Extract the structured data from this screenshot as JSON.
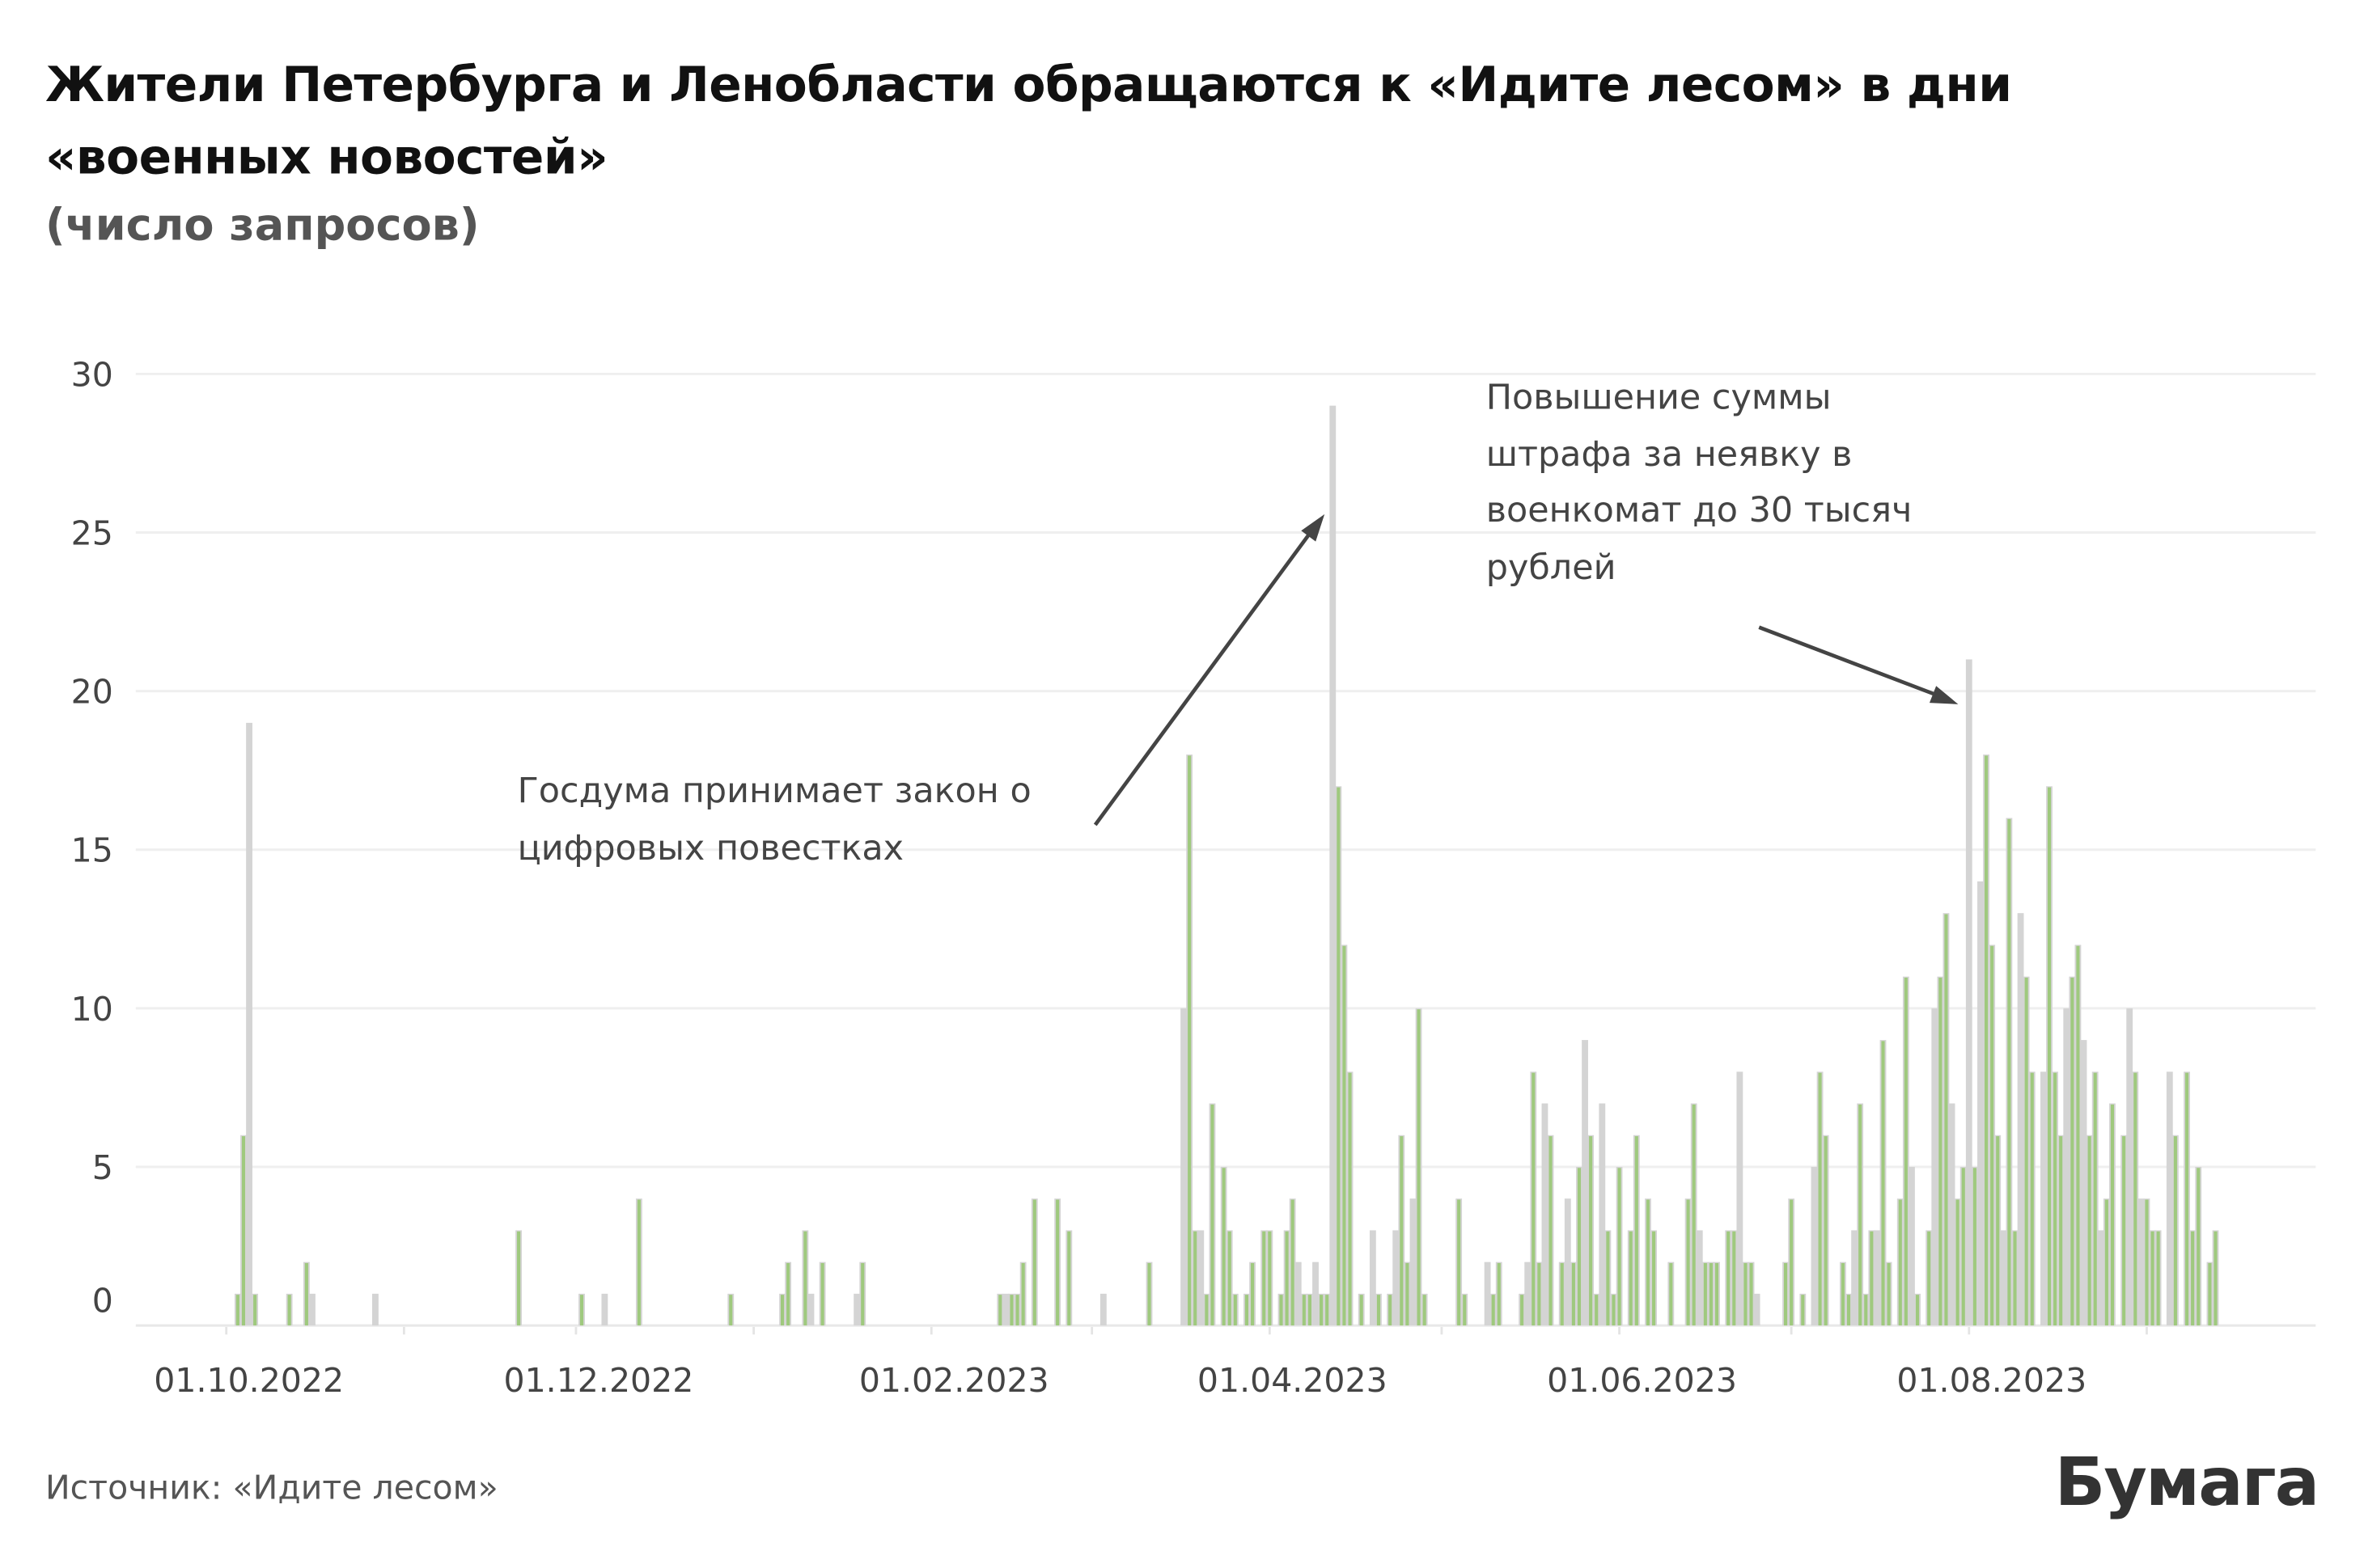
{
  "chart_data": {
    "type": "bar",
    "title": "Жители Петербурга и Ленобласти обращаются к «Идите лесом» в дни «военных новостей»",
    "subtitle": "(число запросов)",
    "xlabel": "",
    "ylabel": "",
    "ylim": [
      0,
      30
    ],
    "xlim": [
      "2022-09-28",
      "2023-09-20"
    ],
    "grid": true,
    "y_ticks": [
      "0",
      "5",
      "10",
      "15",
      "20",
      "25",
      "30"
    ],
    "x_ticks": [
      {
        "date": "2022-10-01",
        "label": "01.10.2022"
      },
      {
        "date": "2022-12-01",
        "label": "01.12.2022"
      },
      {
        "date": "2023-02-01",
        "label": "01.02.2023"
      },
      {
        "date": "2023-04-01",
        "label": "01.04.2023"
      },
      {
        "date": "2023-06-01",
        "label": "01.06.2023"
      },
      {
        "date": "2023-08-01",
        "label": "01.08.2023"
      }
    ],
    "colors": {
      "green": "#9fc97e",
      "gray": "#d4d4d4",
      "grid": "#efefef",
      "text": "#444444"
    },
    "x": [
      "2022-10-03",
      "2022-10-04",
      "2022-10-05",
      "2022-10-06",
      "2022-10-12",
      "2022-10-15",
      "2022-10-16",
      "2022-10-27",
      "2022-11-21",
      "2022-12-02",
      "2022-12-06",
      "2022-12-12",
      "2022-12-28",
      "2023-01-06",
      "2023-01-07",
      "2023-01-10",
      "2023-01-11",
      "2023-01-13",
      "2023-01-19",
      "2023-01-20",
      "2023-02-13",
      "2023-02-14",
      "2023-02-15",
      "2023-02-16",
      "2023-02-17",
      "2023-02-19",
      "2023-02-23",
      "2023-02-25",
      "2023-03-03",
      "2023-03-11",
      "2023-03-17",
      "2023-03-18",
      "2023-03-19",
      "2023-03-20",
      "2023-03-21",
      "2023-03-22",
      "2023-03-24",
      "2023-03-25",
      "2023-03-26",
      "2023-03-28",
      "2023-03-29",
      "2023-03-31",
      "2023-04-01",
      "2023-04-03",
      "2023-04-04",
      "2023-04-05",
      "2023-04-06",
      "2023-04-07",
      "2023-04-08",
      "2023-04-09",
      "2023-04-10",
      "2023-04-11",
      "2023-04-12",
      "2023-04-13",
      "2023-04-14",
      "2023-04-15",
      "2023-04-17",
      "2023-04-19",
      "2023-04-20",
      "2023-04-22",
      "2023-04-23",
      "2023-04-24",
      "2023-04-25",
      "2023-04-26",
      "2023-04-27",
      "2023-04-28",
      "2023-05-04",
      "2023-05-05",
      "2023-05-09",
      "2023-05-10",
      "2023-05-11",
      "2023-05-15",
      "2023-05-16",
      "2023-05-17",
      "2023-05-18",
      "2023-05-19",
      "2023-05-20",
      "2023-05-22",
      "2023-05-23",
      "2023-05-24",
      "2023-05-25",
      "2023-05-26",
      "2023-05-27",
      "2023-05-28",
      "2023-05-29",
      "2023-05-30",
      "2023-05-31",
      "2023-06-01",
      "2023-06-03",
      "2023-06-04",
      "2023-06-06",
      "2023-06-07",
      "2023-06-10",
      "2023-06-13",
      "2023-06-14",
      "2023-06-15",
      "2023-06-16",
      "2023-06-17",
      "2023-06-18",
      "2023-06-20",
      "2023-06-21",
      "2023-06-22",
      "2023-06-23",
      "2023-06-24",
      "2023-06-25",
      "2023-06-30",
      "2023-07-01",
      "2023-07-03",
      "2023-07-05",
      "2023-07-06",
      "2023-07-07",
      "2023-07-10",
      "2023-07-11",
      "2023-07-12",
      "2023-07-13",
      "2023-07-14",
      "2023-07-15",
      "2023-07-16",
      "2023-07-17",
      "2023-07-18",
      "2023-07-20",
      "2023-07-21",
      "2023-07-22",
      "2023-07-23",
      "2023-07-25",
      "2023-07-26",
      "2023-07-27",
      "2023-07-28",
      "2023-07-29",
      "2023-07-30",
      "2023-07-31",
      "2023-08-01",
      "2023-08-02",
      "2023-08-03",
      "2023-08-04",
      "2023-08-05",
      "2023-08-06",
      "2023-08-07",
      "2023-08-08",
      "2023-08-09",
      "2023-08-10",
      "2023-08-11",
      "2023-08-12",
      "2023-08-14",
      "2023-08-15",
      "2023-08-16",
      "2023-08-17",
      "2023-08-18",
      "2023-08-19",
      "2023-08-20",
      "2023-08-21",
      "2023-08-22",
      "2023-08-23",
      "2023-08-24",
      "2023-08-25",
      "2023-08-26",
      "2023-08-28",
      "2023-08-29",
      "2023-08-30",
      "2023-08-31",
      "2023-09-01",
      "2023-09-02",
      "2023-09-03",
      "2023-09-05",
      "2023-09-06",
      "2023-09-08",
      "2023-09-09",
      "2023-09-10",
      "2023-09-12",
      "2023-09-13"
    ],
    "y": [
      1,
      6,
      19,
      1,
      1,
      2,
      1,
      1,
      3,
      1,
      1,
      4,
      1,
      1,
      2,
      3,
      1,
      2,
      1,
      2,
      1,
      1,
      1,
      1,
      2,
      4,
      4,
      3,
      1,
      2,
      10,
      18,
      3,
      3,
      1,
      7,
      5,
      3,
      1,
      1,
      2,
      3,
      3,
      1,
      3,
      4,
      2,
      1,
      1,
      2,
      1,
      1,
      29,
      17,
      12,
      8,
      1,
      3,
      1,
      1,
      3,
      6,
      2,
      4,
      10,
      1,
      4,
      1,
      2,
      1,
      2,
      1,
      2,
      8,
      2,
      7,
      6,
      2,
      4,
      2,
      5,
      9,
      6,
      1,
      7,
      3,
      1,
      5,
      3,
      6,
      4,
      3,
      2,
      4,
      7,
      3,
      2,
      2,
      2,
      3,
      3,
      8,
      2,
      2,
      1,
      2,
      4,
      1,
      5,
      8,
      6,
      2,
      1,
      3,
      7,
      1,
      3,
      3,
      9,
      2,
      4,
      11,
      5,
      1,
      3,
      10,
      11,
      13,
      7,
      4,
      5,
      21,
      5,
      14,
      18,
      12,
      6,
      3,
      16,
      3,
      13,
      11,
      8,
      8,
      17,
      8,
      6,
      10,
      11,
      12,
      9,
      6,
      8,
      3,
      4,
      7,
      6,
      10,
      8,
      4,
      4,
      3,
      3,
      8,
      6,
      8,
      3,
      5,
      2,
      3
    ],
    "kind": [
      "green",
      "green",
      "gray",
      "green",
      "green",
      "green",
      "gray",
      "gray",
      "green",
      "green",
      "gray",
      "green",
      "green",
      "green",
      "green",
      "green",
      "gray",
      "green",
      "gray",
      "green",
      "green",
      "gray",
      "green",
      "green",
      "green",
      "green",
      "green",
      "green",
      "gray",
      "green",
      "gray",
      "green",
      "green",
      "gray",
      "green",
      "green",
      "green",
      "green",
      "green",
      "green",
      "green",
      "green",
      "green",
      "green",
      "green",
      "green",
      "gray",
      "green",
      "green",
      "gray",
      "green",
      "green",
      "gray",
      "green",
      "green",
      "green",
      "green",
      "gray",
      "green",
      "green",
      "gray",
      "green",
      "green",
      "gray",
      "green",
      "green",
      "green",
      "green",
      "gray",
      "green",
      "green",
      "green",
      "gray",
      "green",
      "green",
      "gray",
      "green",
      "green",
      "gray",
      "green",
      "green",
      "gray",
      "green",
      "green",
      "gray",
      "green",
      "green",
      "green",
      "green",
      "green",
      "green",
      "green",
      "green",
      "green",
      "green",
      "gray",
      "green",
      "green",
      "green",
      "green",
      "green",
      "gray",
      "green",
      "green",
      "gray",
      "green",
      "green",
      "green",
      "gray",
      "green",
      "green",
      "green",
      "green",
      "gray",
      "green",
      "green",
      "green",
      "gray",
      "green",
      "green",
      "green",
      "green",
      "gray",
      "green",
      "green",
      "gray",
      "green",
      "green",
      "gray",
      "green",
      "green",
      "gray",
      "green",
      "gray",
      "green",
      "green",
      "green",
      "gray",
      "green",
      "green",
      "gray",
      "green",
      "green",
      "gray",
      "green",
      "green",
      "green",
      "gray",
      "green",
      "green",
      "gray",
      "green",
      "green",
      "gray",
      "green",
      "green",
      "green",
      "gray",
      "green",
      "gray",
      "green",
      "green",
      "green",
      "gray",
      "green",
      "green",
      "green",
      "green",
      "green",
      "green",
      "green",
      "green",
      "green"
    ],
    "annotations": [
      {
        "text": "Госдума принимает закон о цифровых повестках",
        "date": "2023-04-12"
      },
      {
        "text": "Повышение суммы штрафа за неявку в военкомат до 30 тысяч рублей",
        "date": "2023-08-01"
      }
    ]
  },
  "footer": {
    "source": "Источник: «Идите лесом»",
    "logo": "Бумага"
  }
}
